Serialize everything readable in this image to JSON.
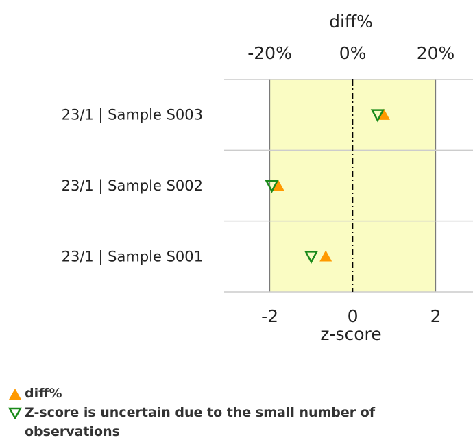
{
  "chart_data": {
    "type": "scatter",
    "top_axis_label": "diff%",
    "top_ticks": [
      "-20%",
      "0%",
      "20%"
    ],
    "bottom_axis_label": "z-score",
    "bottom_ticks": [
      "-2",
      "0",
      "2"
    ],
    "bottom_tick_values": [
      -2,
      0,
      2
    ],
    "xlim": [
      -3.1,
      2.9
    ],
    "band": [
      -2,
      2
    ],
    "categories": [
      "23/1 | Sample S003",
      "23/1 | Sample S002",
      "23/1 | Sample S001"
    ],
    "series": [
      {
        "name": "diff%",
        "marker": "triangle-up",
        "color": "#ff9900",
        "z_values": [
          0.75,
          -1.8,
          -0.65
        ]
      },
      {
        "name": "Z-score is uncertain due to the small number of observations",
        "marker": "triangle-down-open",
        "color": "#1a8a1a",
        "z_values": [
          0.6,
          -1.95,
          -1.0
        ]
      }
    ],
    "colors": {
      "band": "#fafcc3",
      "axis": "#cccccc",
      "band_edge": "#7a7a7a",
      "zero_line": "#000000"
    }
  },
  "legend": {
    "items": [
      {
        "label": "diff%"
      },
      {
        "label": "Z-score is uncertain due to the small number of observations"
      }
    ]
  }
}
